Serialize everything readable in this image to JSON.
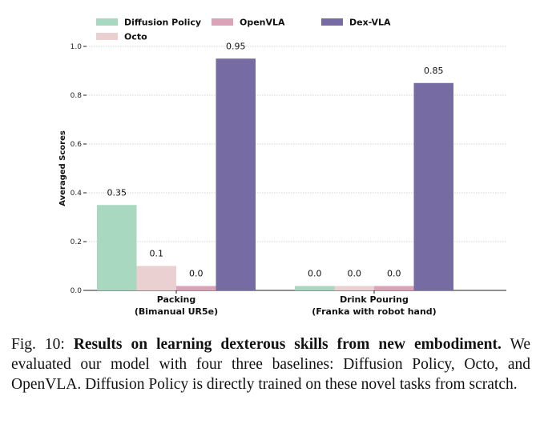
{
  "chart_data": {
    "type": "bar",
    "title": "",
    "xlabel": "",
    "ylabel": "Averaged Scores",
    "ylim": [
      0,
      1.0
    ],
    "yticks": [
      "0.0",
      "0.2",
      "0.4",
      "0.6",
      "0.8",
      "1.0"
    ],
    "grid": true,
    "legend_position": "top",
    "categories": [
      {
        "line1": "Packing",
        "line2": "(Bimanual UR5e)"
      },
      {
        "line1": "Drink Pouring",
        "line2": "(Franka with robot hand)"
      }
    ],
    "series": [
      {
        "name": "Diffusion Policy",
        "color": "#a8d8c0",
        "values": [
          0.35,
          0.0
        ],
        "labels": [
          "0.35",
          "0.0"
        ]
      },
      {
        "name": "Octo",
        "color": "#ead0d0",
        "values": [
          0.1,
          0.0
        ],
        "labels": [
          "0.1",
          "0.0"
        ]
      },
      {
        "name": "OpenVLA",
        "color": "#dca2b6",
        "values": [
          0.0,
          0.0
        ],
        "labels": [
          "0.0",
          "0.0"
        ]
      },
      {
        "name": "Dex-VLA",
        "color": "#766ba3",
        "values": [
          0.95,
          0.85
        ],
        "labels": [
          "0.95",
          "0.85"
        ]
      }
    ]
  },
  "caption": {
    "prefix": "Fig. 10: ",
    "bold": "Results on learning dexterous skills from new embodiment.",
    "text": " We evaluated our model with four three baselines: Diffusion Policy, Octo, and OpenVLA. Diffusion Policy is directly trained on these novel tasks from scratch."
  }
}
